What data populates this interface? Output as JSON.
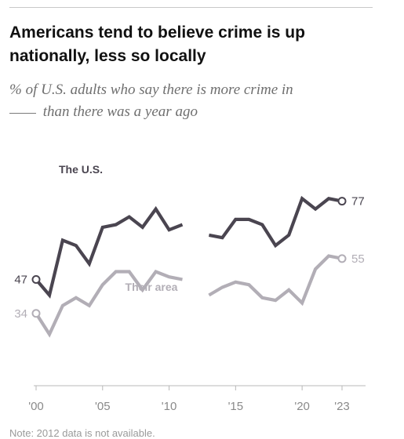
{
  "title": "Americans tend to believe crime is up nationally, less so locally",
  "subtitle_pre": "% of U.S. adults who say there is more crime in",
  "subtitle_post": "than there was a year ago",
  "note": "Note: 2012 data is not available.",
  "colors": {
    "us": "#4a4550",
    "area": "#b2aeb6",
    "axis": "#b8b8b8",
    "tick_label": "#8a8a8a"
  },
  "chart_data": {
    "type": "line",
    "ylim": [
      0,
      100
    ],
    "xlim": [
      2000,
      2023
    ],
    "x_ticks": [
      2000,
      2005,
      2010,
      2015,
      2020,
      2023
    ],
    "x_tick_labels": [
      "'00",
      "'05",
      "'10",
      "'15",
      "'20",
      "'23"
    ],
    "series": [
      {
        "name": "The U.S.",
        "key": "us",
        "first_label": "47",
        "last_label": "77",
        "points": [
          [
            2000,
            47
          ],
          [
            2001,
            41
          ],
          [
            2002,
            62
          ],
          [
            2003,
            60
          ],
          [
            2004,
            53
          ],
          [
            2005,
            67
          ],
          [
            2006,
            68
          ],
          [
            2007,
            71
          ],
          [
            2008,
            67
          ],
          [
            2009,
            74
          ],
          [
            2010,
            66
          ],
          [
            2011,
            68
          ],
          [
            2012,
            null
          ],
          [
            2013,
            64
          ],
          [
            2014,
            63
          ],
          [
            2015,
            70
          ],
          [
            2016,
            70
          ],
          [
            2017,
            68
          ],
          [
            2018,
            60
          ],
          [
            2019,
            64
          ],
          [
            2020,
            78
          ],
          [
            2021,
            74
          ],
          [
            2022,
            78
          ],
          [
            2023,
            77
          ]
        ]
      },
      {
        "name": "Their area",
        "key": "area",
        "first_label": "34",
        "last_label": "55",
        "points": [
          [
            2000,
            34
          ],
          [
            2001,
            26
          ],
          [
            2002,
            37
          ],
          [
            2003,
            40
          ],
          [
            2004,
            37
          ],
          [
            2005,
            45
          ],
          [
            2006,
            50
          ],
          [
            2007,
            50
          ],
          [
            2008,
            43
          ],
          [
            2009,
            50
          ],
          [
            2010,
            48
          ],
          [
            2011,
            47
          ],
          [
            2012,
            null
          ],
          [
            2013,
            41
          ],
          [
            2014,
            44
          ],
          [
            2015,
            46
          ],
          [
            2016,
            45
          ],
          [
            2017,
            40
          ],
          [
            2018,
            39
          ],
          [
            2019,
            43
          ],
          [
            2020,
            38
          ],
          [
            2021,
            51
          ],
          [
            2022,
            56
          ],
          [
            2023,
            55
          ]
        ]
      }
    ]
  }
}
